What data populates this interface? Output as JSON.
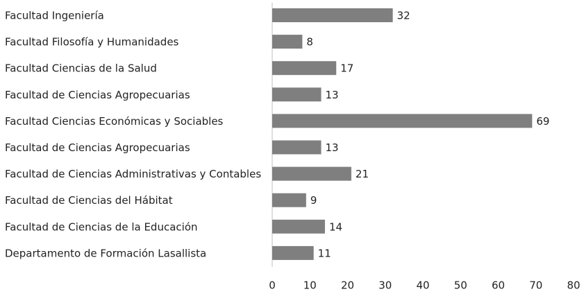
{
  "chart_data": {
    "type": "bar",
    "orientation": "horizontal",
    "categories": [
      "Facultad Ingeniería",
      "Facultad Filosofía y Humanidades",
      "Facultad Ciencias de la Salud",
      "Facultad de Ciencias Agropecuarias",
      "Facultad Ciencias Económicas y Sociables",
      "Facultad de Ciencias Agropecuarias",
      "Facultad de Ciencias Administrativas y Contables",
      "Facultad de Ciencias del Hábitat",
      "Facultad de Ciencias de la Educación",
      "Departamento de Formación Lasallista"
    ],
    "values": [
      32,
      8,
      17,
      13,
      69,
      13,
      21,
      9,
      14,
      11
    ],
    "color": "#7f7f7f",
    "xlim": [
      0,
      80
    ],
    "xticks": [
      0,
      10,
      20,
      30,
      40,
      50,
      60,
      70,
      80
    ],
    "grid": false
  }
}
